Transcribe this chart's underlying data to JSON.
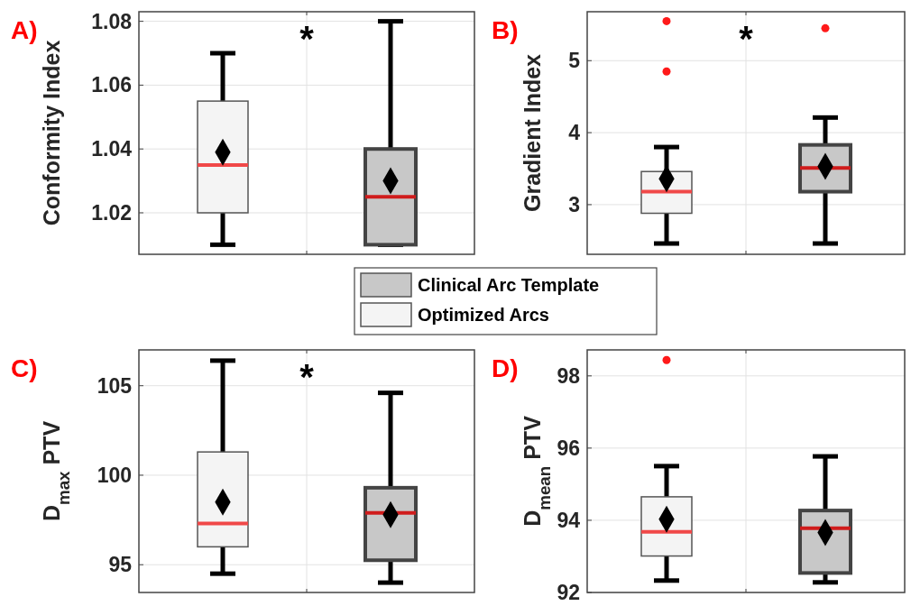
{
  "chart_data": [
    {
      "type": "box",
      "ylabel": "Conformity Index",
      "annotations": [
        "A)",
        "*"
      ],
      "categories": [
        null,
        null
      ],
      "ylim": [
        1.007,
        1.083
      ],
      "yticks": [
        1.02,
        1.04,
        1.06,
        1.08
      ],
      "grid": true,
      "tick_labels": "y",
      "legend": "bottom",
      "marker": "diamond",
      "series": [
        {
          "name": "Optimized Arcs",
          "color": "#f4f4f4",
          "boxes": [
            {
              "low": 1.01,
              "q1": 1.02,
              "median": 1.035,
              "q3": 1.055,
              "high": 1.07,
              "mean": 1.039
            },
            null
          ]
        },
        {
          "name": "Clinical Arc Template",
          "color": "#c8c8c8",
          "boxes": [
            null,
            {
              "low": 1.01,
              "q1": 1.01,
              "median": 1.025,
              "q3": 1.04,
              "high": 1.08,
              "mean": 1.03
            }
          ]
        }
      ]
    },
    {
      "type": "box",
      "ylabel": "Gradient Index",
      "annotations": [
        "B)",
        "*"
      ],
      "categories": [
        null,
        null
      ],
      "ylim": [
        2.31,
        5.68
      ],
      "yticks": [
        3,
        4,
        5
      ],
      "grid": true,
      "tick_labels": "y",
      "marker": "diamond",
      "series": [
        {
          "color": "#f4f4f4",
          "boxes": [
            {
              "low": 2.46,
              "q1": 2.88,
              "median": 3.18,
              "q3": 3.46,
              "high": 3.8,
              "mean": 3.36,
              "outliers": [
                4.85,
                5.55
              ]
            },
            null
          ]
        },
        {
          "color": "#c8c8c8",
          "boxes": [
            null,
            {
              "low": 2.46,
              "q1": 3.18,
              "median": 3.51,
              "q3": 3.83,
              "high": 4.21,
              "mean": 3.53,
              "outliers": [
                5.45
              ]
            }
          ]
        }
      ]
    },
    {
      "type": "box",
      "ylabel": "D$_{max}$ PTV",
      "annotations": [
        "C)",
        "*"
      ],
      "categories": [
        null,
        null
      ],
      "ylim": [
        93.45,
        107
      ],
      "yticks": [
        95,
        100,
        105
      ],
      "grid": true,
      "tick_labels": "y",
      "marker": "diamond",
      "series": [
        {
          "color": "#f4f4f4",
          "boxes": [
            {
              "low": 94.5,
              "q1": 96,
              "median": 97.3,
              "q3": 101.3,
              "high": 106.4,
              "mean": 98.5
            },
            null
          ]
        },
        {
          "color": "#c8c8c8",
          "boxes": [
            null,
            {
              "low": 94,
              "q1": 95.25,
              "median": 97.9,
              "q3": 99.3,
              "high": 104.6,
              "mean": 97.8
            }
          ]
        }
      ]
    },
    {
      "type": "box",
      "ylabel": "D$_{mean}$ PTV",
      "annotations": [
        "D)"
      ],
      "categories": [
        null,
        null
      ],
      "ylim": [
        92,
        98.72
      ],
      "yticks": [
        92,
        94,
        96,
        98
      ],
      "grid": true,
      "tick_labels": "y",
      "marker": "diamond",
      "series": [
        {
          "color": "#f4f4f4",
          "boxes": [
            {
              "low": 92.33,
              "q1": 93.01,
              "median": 93.68,
              "q3": 94.65,
              "high": 95.5,
              "mean": 94.03,
              "outliers": [
                98.44
              ]
            },
            null
          ]
        },
        {
          "color": "#c8c8c8",
          "boxes": [
            null,
            {
              "low": 92.28,
              "q1": 92.54,
              "median": 93.78,
              "q3": 94.27,
              "high": 95.77,
              "mean": 93.66
            }
          ]
        }
      ]
    }
  ]
}
